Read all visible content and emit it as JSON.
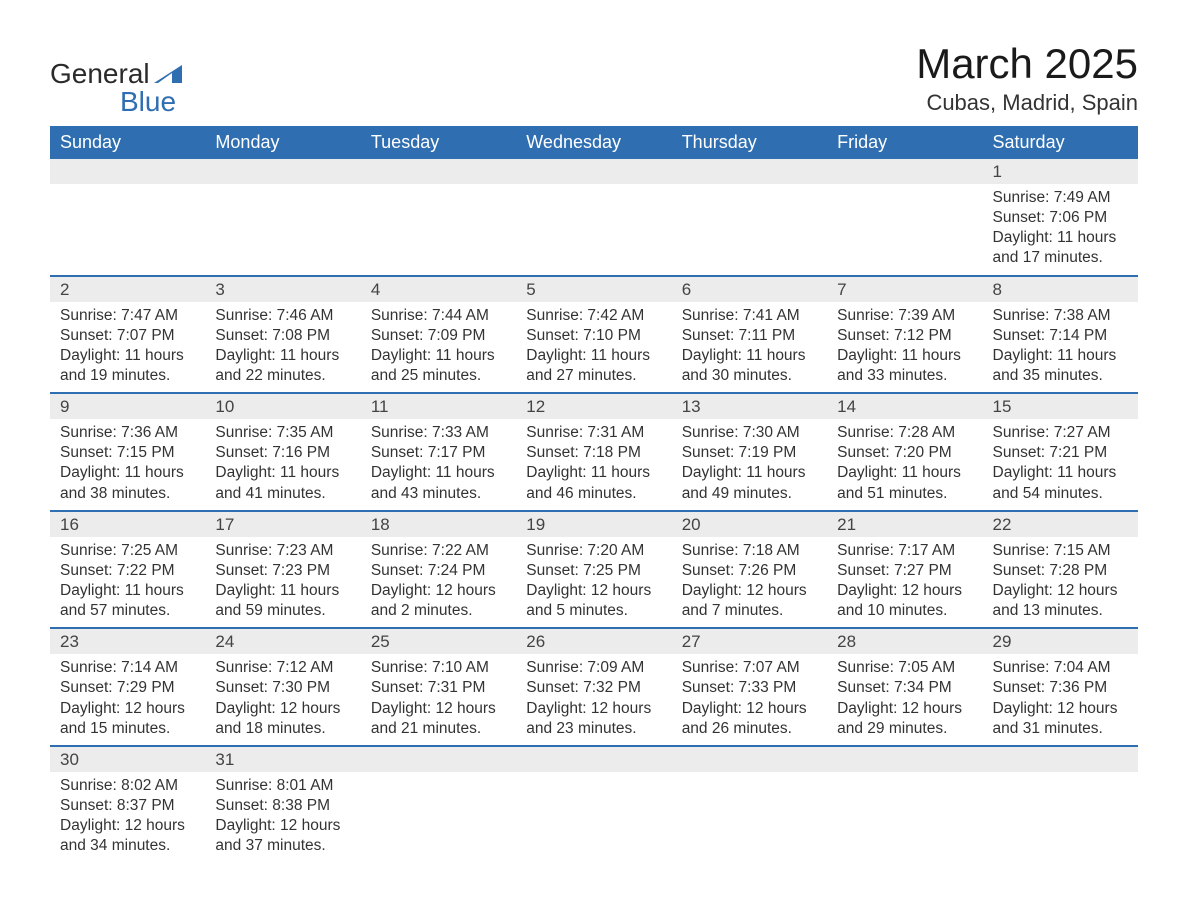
{
  "brand": {
    "part1": "General",
    "part2": "Blue"
  },
  "title": "March 2025",
  "location": "Cubas, Madrid, Spain",
  "colors": {
    "header_bg": "#2f6eb0",
    "header_text": "#ffffff",
    "row_divider": "#2f6eb0",
    "daynum_bg": "#ececec",
    "text": "#333333",
    "background": "#ffffff"
  },
  "weekdays": [
    "Sunday",
    "Monday",
    "Tuesday",
    "Wednesday",
    "Thursday",
    "Friday",
    "Saturday"
  ],
  "weeks": [
    [
      {
        "blank": true
      },
      {
        "blank": true
      },
      {
        "blank": true
      },
      {
        "blank": true
      },
      {
        "blank": true
      },
      {
        "blank": true
      },
      {
        "n": "1",
        "sunrise": "Sunrise: 7:49 AM",
        "sunset": "Sunset: 7:06 PM",
        "day1": "Daylight: 11 hours",
        "day2": "and 17 minutes."
      }
    ],
    [
      {
        "n": "2",
        "sunrise": "Sunrise: 7:47 AM",
        "sunset": "Sunset: 7:07 PM",
        "day1": "Daylight: 11 hours",
        "day2": "and 19 minutes."
      },
      {
        "n": "3",
        "sunrise": "Sunrise: 7:46 AM",
        "sunset": "Sunset: 7:08 PM",
        "day1": "Daylight: 11 hours",
        "day2": "and 22 minutes."
      },
      {
        "n": "4",
        "sunrise": "Sunrise: 7:44 AM",
        "sunset": "Sunset: 7:09 PM",
        "day1": "Daylight: 11 hours",
        "day2": "and 25 minutes."
      },
      {
        "n": "5",
        "sunrise": "Sunrise: 7:42 AM",
        "sunset": "Sunset: 7:10 PM",
        "day1": "Daylight: 11 hours",
        "day2": "and 27 minutes."
      },
      {
        "n": "6",
        "sunrise": "Sunrise: 7:41 AM",
        "sunset": "Sunset: 7:11 PM",
        "day1": "Daylight: 11 hours",
        "day2": "and 30 minutes."
      },
      {
        "n": "7",
        "sunrise": "Sunrise: 7:39 AM",
        "sunset": "Sunset: 7:12 PM",
        "day1": "Daylight: 11 hours",
        "day2": "and 33 minutes."
      },
      {
        "n": "8",
        "sunrise": "Sunrise: 7:38 AM",
        "sunset": "Sunset: 7:14 PM",
        "day1": "Daylight: 11 hours",
        "day2": "and 35 minutes."
      }
    ],
    [
      {
        "n": "9",
        "sunrise": "Sunrise: 7:36 AM",
        "sunset": "Sunset: 7:15 PM",
        "day1": "Daylight: 11 hours",
        "day2": "and 38 minutes."
      },
      {
        "n": "10",
        "sunrise": "Sunrise: 7:35 AM",
        "sunset": "Sunset: 7:16 PM",
        "day1": "Daylight: 11 hours",
        "day2": "and 41 minutes."
      },
      {
        "n": "11",
        "sunrise": "Sunrise: 7:33 AM",
        "sunset": "Sunset: 7:17 PM",
        "day1": "Daylight: 11 hours",
        "day2": "and 43 minutes."
      },
      {
        "n": "12",
        "sunrise": "Sunrise: 7:31 AM",
        "sunset": "Sunset: 7:18 PM",
        "day1": "Daylight: 11 hours",
        "day2": "and 46 minutes."
      },
      {
        "n": "13",
        "sunrise": "Sunrise: 7:30 AM",
        "sunset": "Sunset: 7:19 PM",
        "day1": "Daylight: 11 hours",
        "day2": "and 49 minutes."
      },
      {
        "n": "14",
        "sunrise": "Sunrise: 7:28 AM",
        "sunset": "Sunset: 7:20 PM",
        "day1": "Daylight: 11 hours",
        "day2": "and 51 minutes."
      },
      {
        "n": "15",
        "sunrise": "Sunrise: 7:27 AM",
        "sunset": "Sunset: 7:21 PM",
        "day1": "Daylight: 11 hours",
        "day2": "and 54 minutes."
      }
    ],
    [
      {
        "n": "16",
        "sunrise": "Sunrise: 7:25 AM",
        "sunset": "Sunset: 7:22 PM",
        "day1": "Daylight: 11 hours",
        "day2": "and 57 minutes."
      },
      {
        "n": "17",
        "sunrise": "Sunrise: 7:23 AM",
        "sunset": "Sunset: 7:23 PM",
        "day1": "Daylight: 11 hours",
        "day2": "and 59 minutes."
      },
      {
        "n": "18",
        "sunrise": "Sunrise: 7:22 AM",
        "sunset": "Sunset: 7:24 PM",
        "day1": "Daylight: 12 hours",
        "day2": "and 2 minutes."
      },
      {
        "n": "19",
        "sunrise": "Sunrise: 7:20 AM",
        "sunset": "Sunset: 7:25 PM",
        "day1": "Daylight: 12 hours",
        "day2": "and 5 minutes."
      },
      {
        "n": "20",
        "sunrise": "Sunrise: 7:18 AM",
        "sunset": "Sunset: 7:26 PM",
        "day1": "Daylight: 12 hours",
        "day2": "and 7 minutes."
      },
      {
        "n": "21",
        "sunrise": "Sunrise: 7:17 AM",
        "sunset": "Sunset: 7:27 PM",
        "day1": "Daylight: 12 hours",
        "day2": "and 10 minutes."
      },
      {
        "n": "22",
        "sunrise": "Sunrise: 7:15 AM",
        "sunset": "Sunset: 7:28 PM",
        "day1": "Daylight: 12 hours",
        "day2": "and 13 minutes."
      }
    ],
    [
      {
        "n": "23",
        "sunrise": "Sunrise: 7:14 AM",
        "sunset": "Sunset: 7:29 PM",
        "day1": "Daylight: 12 hours",
        "day2": "and 15 minutes."
      },
      {
        "n": "24",
        "sunrise": "Sunrise: 7:12 AM",
        "sunset": "Sunset: 7:30 PM",
        "day1": "Daylight: 12 hours",
        "day2": "and 18 minutes."
      },
      {
        "n": "25",
        "sunrise": "Sunrise: 7:10 AM",
        "sunset": "Sunset: 7:31 PM",
        "day1": "Daylight: 12 hours",
        "day2": "and 21 minutes."
      },
      {
        "n": "26",
        "sunrise": "Sunrise: 7:09 AM",
        "sunset": "Sunset: 7:32 PM",
        "day1": "Daylight: 12 hours",
        "day2": "and 23 minutes."
      },
      {
        "n": "27",
        "sunrise": "Sunrise: 7:07 AM",
        "sunset": "Sunset: 7:33 PM",
        "day1": "Daylight: 12 hours",
        "day2": "and 26 minutes."
      },
      {
        "n": "28",
        "sunrise": "Sunrise: 7:05 AM",
        "sunset": "Sunset: 7:34 PM",
        "day1": "Daylight: 12 hours",
        "day2": "and 29 minutes."
      },
      {
        "n": "29",
        "sunrise": "Sunrise: 7:04 AM",
        "sunset": "Sunset: 7:36 PM",
        "day1": "Daylight: 12 hours",
        "day2": "and 31 minutes."
      }
    ],
    [
      {
        "n": "30",
        "sunrise": "Sunrise: 8:02 AM",
        "sunset": "Sunset: 8:37 PM",
        "day1": "Daylight: 12 hours",
        "day2": "and 34 minutes."
      },
      {
        "n": "31",
        "sunrise": "Sunrise: 8:01 AM",
        "sunset": "Sunset: 8:38 PM",
        "day1": "Daylight: 12 hours",
        "day2": "and 37 minutes."
      },
      {
        "blank": true
      },
      {
        "blank": true
      },
      {
        "blank": true
      },
      {
        "blank": true
      },
      {
        "blank": true
      }
    ]
  ]
}
